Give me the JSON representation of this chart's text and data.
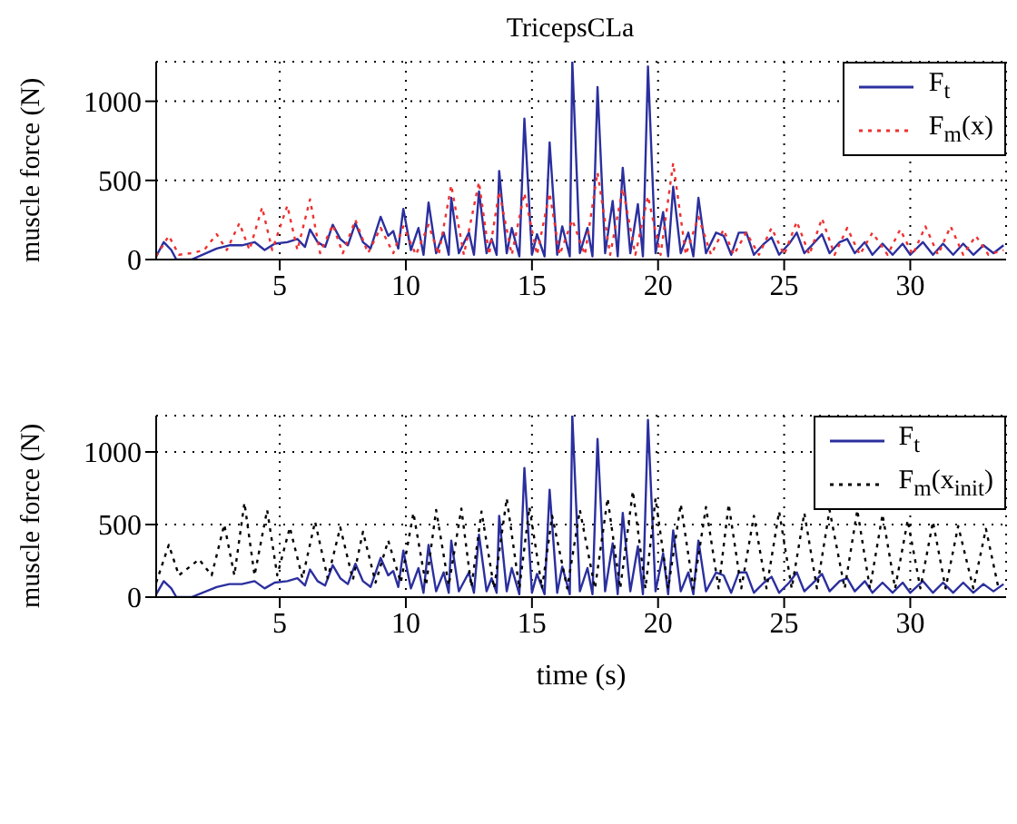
{
  "chart_data": [
    {
      "type": "line",
      "title": "TricepsCLa",
      "ylabel": "muscle force (N)",
      "xlim": [
        0.1,
        33.8
      ],
      "xticks": [
        5,
        10,
        15,
        20,
        25,
        30
      ],
      "ylim": [
        0,
        1250
      ],
      "yticks": [
        0,
        500,
        1000
      ],
      "grid": true,
      "legend": "top right",
      "series": [
        {
          "name": "F$_{t}$",
          "color": "#2b2f9e",
          "line_style": "solid",
          "x": [
            0.1,
            0.4,
            0.7,
            0.9,
            1.5,
            2.5,
            3.0,
            3.5,
            4.0,
            4.4,
            4.8,
            5.3,
            5.7,
            6.0,
            6.2,
            6.5,
            6.8,
            7.1,
            7.4,
            7.7,
            8.0,
            8.3,
            8.6,
            9.0,
            9.3,
            9.5,
            9.7,
            9.9,
            10.2,
            10.5,
            10.7,
            10.9,
            11.2,
            11.5,
            11.7,
            11.8,
            12.1,
            12.5,
            12.7,
            12.9,
            13.2,
            13.4,
            13.6,
            13.7,
            14.0,
            14.2,
            14.5,
            14.7,
            15.0,
            15.2,
            15.5,
            15.7,
            16.0,
            16.2,
            16.5,
            16.6,
            16.9,
            17.2,
            17.4,
            17.6,
            17.9,
            18.2,
            18.4,
            18.6,
            18.9,
            19.2,
            19.4,
            19.6,
            19.9,
            20.2,
            20.4,
            20.6,
            20.9,
            21.2,
            21.4,
            21.6,
            21.9,
            22.3,
            22.6,
            22.9,
            23.2,
            23.5,
            23.8,
            24.2,
            24.5,
            24.8,
            25.2,
            25.5,
            25.8,
            26.1,
            26.5,
            26.8,
            27.2,
            27.5,
            27.8,
            28.2,
            28.5,
            28.9,
            29.3,
            29.7,
            30.0,
            30.5,
            30.9,
            31.3,
            31.7,
            32.1,
            32.5,
            32.9,
            33.3,
            33.7
          ],
          "values": [
            20,
            110,
            60,
            0,
            0,
            70,
            90,
            90,
            110,
            60,
            100,
            110,
            130,
            80,
            190,
            110,
            80,
            220,
            130,
            90,
            230,
            110,
            70,
            270,
            150,
            180,
            70,
            320,
            60,
            200,
            30,
            360,
            40,
            170,
            30,
            390,
            40,
            170,
            30,
            430,
            40,
            130,
            30,
            560,
            40,
            200,
            20,
            890,
            30,
            160,
            20,
            740,
            30,
            210,
            20,
            1250,
            40,
            200,
            20,
            1090,
            40,
            370,
            20,
            580,
            40,
            350,
            20,
            1220,
            40,
            300,
            20,
            460,
            40,
            170,
            20,
            390,
            40,
            170,
            150,
            30,
            170,
            170,
            30,
            100,
            140,
            30,
            100,
            170,
            40,
            90,
            160,
            40,
            110,
            130,
            40,
            110,
            30,
            100,
            30,
            100,
            30,
            110,
            30,
            100,
            30,
            100,
            30,
            90,
            40,
            90
          ]
        },
        {
          "name": "F$_{m}$(x)",
          "color": "#f03030",
          "line_style": "dotted",
          "x": [
            0.1,
            0.6,
            1.0,
            1.5,
            2.0,
            2.5,
            2.9,
            3.4,
            3.8,
            4.3,
            4.7,
            5.3,
            5.7,
            6.2,
            6.6,
            7.1,
            7.5,
            8.0,
            8.5,
            9.0,
            9.5,
            9.9,
            10.4,
            10.9,
            11.3,
            11.8,
            12.3,
            12.9,
            13.3,
            13.7,
            14.2,
            14.7,
            15.2,
            15.7,
            16.1,
            16.6,
            17.1,
            17.6,
            18.1,
            18.6,
            19.1,
            19.6,
            20.1,
            20.6,
            21.1,
            21.6,
            22.1,
            22.6,
            23.0,
            23.5,
            24.0,
            24.5,
            25.0,
            25.5,
            26.0,
            26.5,
            27.0,
            27.5,
            28.0,
            28.5,
            29.1,
            29.6,
            30.1,
            30.6,
            31.1,
            31.6,
            32.1,
            32.6,
            33.1,
            33.7
          ],
          "values": [
            20,
            150,
            30,
            40,
            60,
            160,
            60,
            230,
            60,
            330,
            60,
            340,
            60,
            380,
            40,
            220,
            40,
            250,
            40,
            200,
            40,
            210,
            30,
            220,
            30,
            470,
            30,
            490,
            30,
            430,
            30,
            420,
            30,
            420,
            30,
            250,
            30,
            550,
            30,
            450,
            30,
            400,
            30,
            610,
            30,
            270,
            30,
            190,
            30,
            170,
            30,
            200,
            30,
            240,
            30,
            260,
            30,
            200,
            30,
            170,
            30,
            190,
            30,
            210,
            30,
            210,
            30,
            150,
            30,
            60
          ]
        }
      ]
    },
    {
      "type": "line",
      "xlabel": "time (s)",
      "ylabel": "muscle force (N)",
      "xlim": [
        0.1,
        33.8
      ],
      "xticks": [
        5,
        10,
        15,
        20,
        25,
        30
      ],
      "ylim": [
        0,
        1250
      ],
      "yticks": [
        0,
        500,
        1000
      ],
      "grid": true,
      "legend": "top right",
      "series": [
        {
          "name": "F$_{t}$",
          "color": "#2b2f9e",
          "line_style": "solid",
          "x": [
            0.1,
            0.4,
            0.7,
            0.9,
            1.5,
            2.5,
            3.0,
            3.5,
            4.0,
            4.4,
            4.8,
            5.3,
            5.7,
            6.0,
            6.2,
            6.5,
            6.8,
            7.1,
            7.4,
            7.7,
            8.0,
            8.3,
            8.6,
            9.0,
            9.3,
            9.5,
            9.7,
            9.9,
            10.2,
            10.5,
            10.7,
            10.9,
            11.2,
            11.5,
            11.7,
            11.8,
            12.1,
            12.5,
            12.7,
            12.9,
            13.2,
            13.4,
            13.6,
            13.7,
            14.0,
            14.2,
            14.5,
            14.7,
            15.0,
            15.2,
            15.5,
            15.7,
            16.0,
            16.2,
            16.5,
            16.6,
            16.9,
            17.2,
            17.4,
            17.6,
            17.9,
            18.2,
            18.4,
            18.6,
            18.9,
            19.2,
            19.4,
            19.6,
            19.9,
            20.2,
            20.4,
            20.6,
            20.9,
            21.2,
            21.4,
            21.6,
            21.9,
            22.3,
            22.6,
            22.9,
            23.2,
            23.5,
            23.8,
            24.2,
            24.5,
            24.8,
            25.2,
            25.5,
            25.8,
            26.1,
            26.5,
            26.8,
            27.2,
            27.5,
            27.8,
            28.2,
            28.5,
            28.9,
            29.3,
            29.7,
            30.0,
            30.5,
            30.9,
            31.3,
            31.7,
            32.1,
            32.5,
            32.9,
            33.3,
            33.7
          ],
          "values": [
            20,
            110,
            60,
            0,
            0,
            70,
            90,
            90,
            110,
            60,
            100,
            110,
            130,
            80,
            190,
            110,
            80,
            220,
            130,
            90,
            230,
            110,
            70,
            270,
            150,
            180,
            70,
            320,
            60,
            200,
            30,
            360,
            40,
            170,
            30,
            390,
            40,
            170,
            30,
            430,
            40,
            130,
            30,
            560,
            40,
            200,
            20,
            890,
            30,
            160,
            20,
            740,
            30,
            210,
            20,
            1250,
            40,
            200,
            20,
            1090,
            40,
            370,
            20,
            580,
            40,
            350,
            20,
            1220,
            40,
            300,
            20,
            460,
            40,
            170,
            20,
            390,
            40,
            170,
            150,
            30,
            170,
            170,
            30,
            100,
            140,
            30,
            100,
            170,
            40,
            90,
            160,
            40,
            110,
            130,
            40,
            110,
            30,
            100,
            30,
            100,
            30,
            110,
            30,
            100,
            30,
            100,
            30,
            90,
            40,
            90
          ]
        },
        {
          "name": "F$_{m}$(x$_{init}$)",
          "color": "#000000",
          "line_style": "dotted",
          "x": [
            0.1,
            0.6,
            1.0,
            1.8,
            2.3,
            2.8,
            3.2,
            3.6,
            4.0,
            4.5,
            4.9,
            5.4,
            5.9,
            6.4,
            6.9,
            7.4,
            7.9,
            8.3,
            8.8,
            9.3,
            9.8,
            10.3,
            10.8,
            11.2,
            11.7,
            12.2,
            12.6,
            13.0,
            13.5,
            14.0,
            14.5,
            14.9,
            15.4,
            15.8,
            16.4,
            16.9,
            17.5,
            18.0,
            18.5,
            19.0,
            19.5,
            19.9,
            20.4,
            20.9,
            21.4,
            21.9,
            22.4,
            22.8,
            23.3,
            23.8,
            24.3,
            24.8,
            25.3,
            25.8,
            26.3,
            26.8,
            27.4,
            27.9,
            28.4,
            28.9,
            29.4,
            29.9,
            30.4,
            30.9,
            31.4,
            31.9,
            32.5,
            33.0,
            33.5
          ],
          "values": [
            100,
            360,
            150,
            260,
            150,
            500,
            150,
            650,
            150,
            600,
            150,
            480,
            130,
            520,
            130,
            480,
            120,
            450,
            100,
            390,
            100,
            580,
            80,
            600,
            80,
            610,
            70,
            590,
            60,
            680,
            60,
            620,
            60,
            560,
            60,
            600,
            60,
            680,
            60,
            730,
            60,
            680,
            60,
            640,
            60,
            620,
            60,
            640,
            60,
            560,
            60,
            590,
            60,
            580,
            60,
            600,
            60,
            600,
            60,
            570,
            60,
            530,
            60,
            520,
            60,
            490,
            60,
            470,
            60
          ]
        }
      ]
    }
  ]
}
